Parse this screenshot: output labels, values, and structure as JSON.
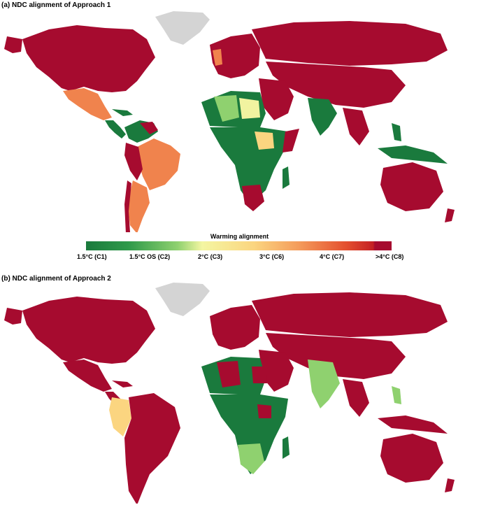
{
  "panel_a": {
    "title": "(a) NDC alignment of Approach 1"
  },
  "panel_b": {
    "title": "(b) NDC alignment of Approach 2"
  },
  "legend": {
    "title": "Warming alignment",
    "ticks": [
      "1.5°C (C1)",
      "1.5°C OS (C2)",
      "2°C (C3)",
      "3°C (C6)",
      "4°C (C7)",
      ">4°C (C8)"
    ]
  },
  "colors": {
    "c1": "#1a7a3d",
    "c2": "#8fd16f",
    "c3": "#f1f3a0",
    "c6": "#fbd580",
    "c7": "#f0834d",
    "c8": "#a60b2f",
    "no_data": "#d4d4d4"
  }
}
